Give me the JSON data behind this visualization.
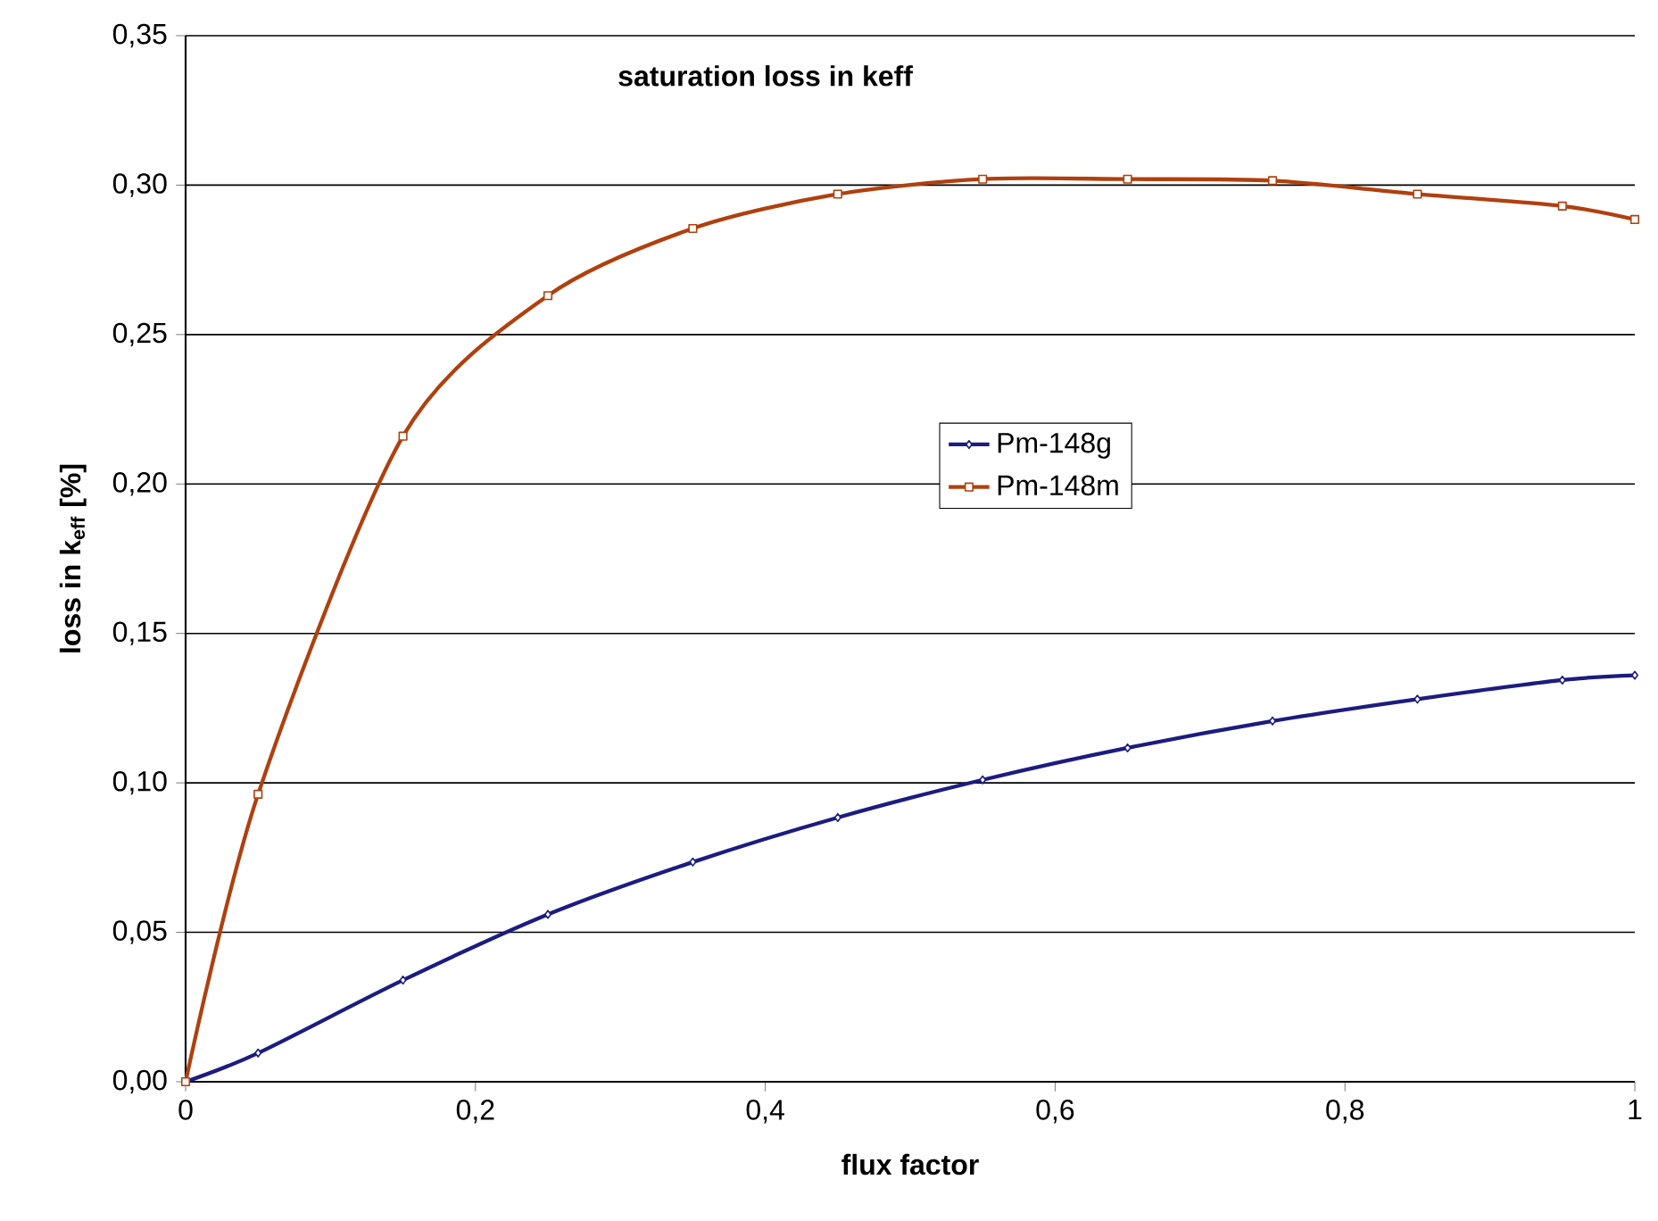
{
  "chart_data": {
    "type": "line",
    "title": "saturation loss in keff",
    "xlabel": "flux factor",
    "ylabel": "loss in k$_{eff}$ [%]",
    "xlim": [
      0,
      1
    ],
    "ylim": [
      0,
      0.35
    ],
    "xticks": [
      0,
      {
        "value": 0.2,
        "label": "0,2"
      },
      {
        "value": 0.4,
        "label": "0,4"
      },
      {
        "value": 0.6,
        "label": "0,6"
      },
      {
        "value": 0.8,
        "label": "0,8"
      },
      1
    ],
    "yticks": [
      {
        "value": 0,
        "label": "0,00"
      },
      {
        "value": 0.05,
        "label": "0,05"
      },
      {
        "value": 0.1,
        "label": "0,10"
      },
      {
        "value": 0.15,
        "label": "0,15"
      },
      {
        "value": 0.2,
        "label": "0,20"
      },
      {
        "value": 0.25,
        "label": "0,25"
      },
      {
        "value": 0.3,
        "label": "0,30"
      },
      {
        "value": 0.35,
        "label": "0,35"
      }
    ],
    "grid": "y",
    "legend": "center",
    "x": [
      0,
      0.05,
      0.15,
      0.25,
      0.35,
      0.45,
      0.55,
      0.65,
      0.75,
      0.85,
      0.95,
      1
    ],
    "series": [
      {
        "name": "Pm-148g",
        "color": "#1c1c80",
        "marker": "diamond",
        "values": [
          0,
          0.0096,
          0.034,
          0.056,
          0.0735,
          0.0884,
          0.101,
          0.1117,
          0.1207,
          0.128,
          0.1344,
          0.136
        ]
      },
      {
        "name": "Pm-148m",
        "color": "#b0400e",
        "marker": "square",
        "values": [
          0,
          0.0962,
          0.216,
          0.263,
          0.2855,
          0.297,
          0.302,
          0.302,
          0.3015,
          0.297,
          0.293,
          0.2885
        ]
      }
    ]
  }
}
